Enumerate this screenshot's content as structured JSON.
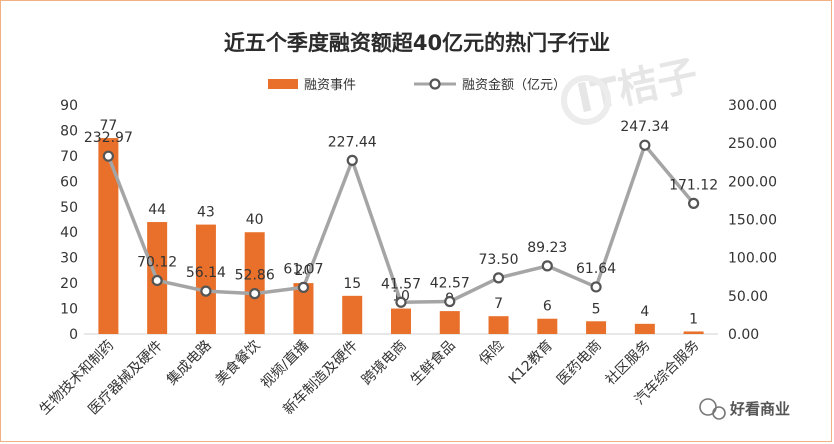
{
  "chart_data": {
    "type": "bar",
    "title": "近五个季度融资额超40亿元的热门子行业",
    "legend_placement": "top",
    "categories": [
      "生物技术和制药",
      "医疗器械及硬件",
      "集成电路",
      "美食餐饮",
      "视频/直播",
      "新车制造及硬件",
      "跨境电商",
      "生鲜食品",
      "保险",
      "K12教育",
      "医药电商",
      "社区服务",
      "汽车综合服务"
    ],
    "series": [
      {
        "name": "融资事件",
        "type": "bar",
        "axis": "left",
        "color": "#e8702a",
        "values": [
          77,
          44,
          43,
          40,
          20,
          15,
          10,
          9,
          7,
          6,
          5,
          4,
          1
        ],
        "labels": [
          "77",
          "44",
          "43",
          "40",
          "20",
          "15",
          "10",
          "9",
          "7",
          "6",
          "5",
          "4",
          "1"
        ]
      },
      {
        "name": "融资金额（亿元）",
        "type": "line",
        "axis": "right",
        "color": "#a5a5a5",
        "values": [
          232.97,
          70.12,
          56.14,
          52.86,
          61.07,
          227.44,
          41.57,
          42.57,
          73.5,
          89.23,
          61.64,
          247.34,
          171.12
        ],
        "labels": [
          "232.97",
          "70.12",
          "56.14",
          "52.86",
          "61.07",
          "227.44",
          "41.57",
          "42.57",
          "73.50",
          "89.23",
          "61.64",
          "247.34",
          "171.12"
        ]
      }
    ],
    "y_left": {
      "min": 0,
      "max": 90,
      "ticks": [
        "0",
        "10",
        "20",
        "30",
        "40",
        "50",
        "60",
        "70",
        "80",
        "90"
      ]
    },
    "y_right": {
      "min": 0,
      "max": 300,
      "ticks": [
        "0.00",
        "50.00",
        "100.00",
        "150.00",
        "200.00",
        "250.00",
        "300.00"
      ]
    },
    "grid": false
  },
  "watermark": "IT桔子",
  "source_badge": {
    "text": "好看商业"
  }
}
